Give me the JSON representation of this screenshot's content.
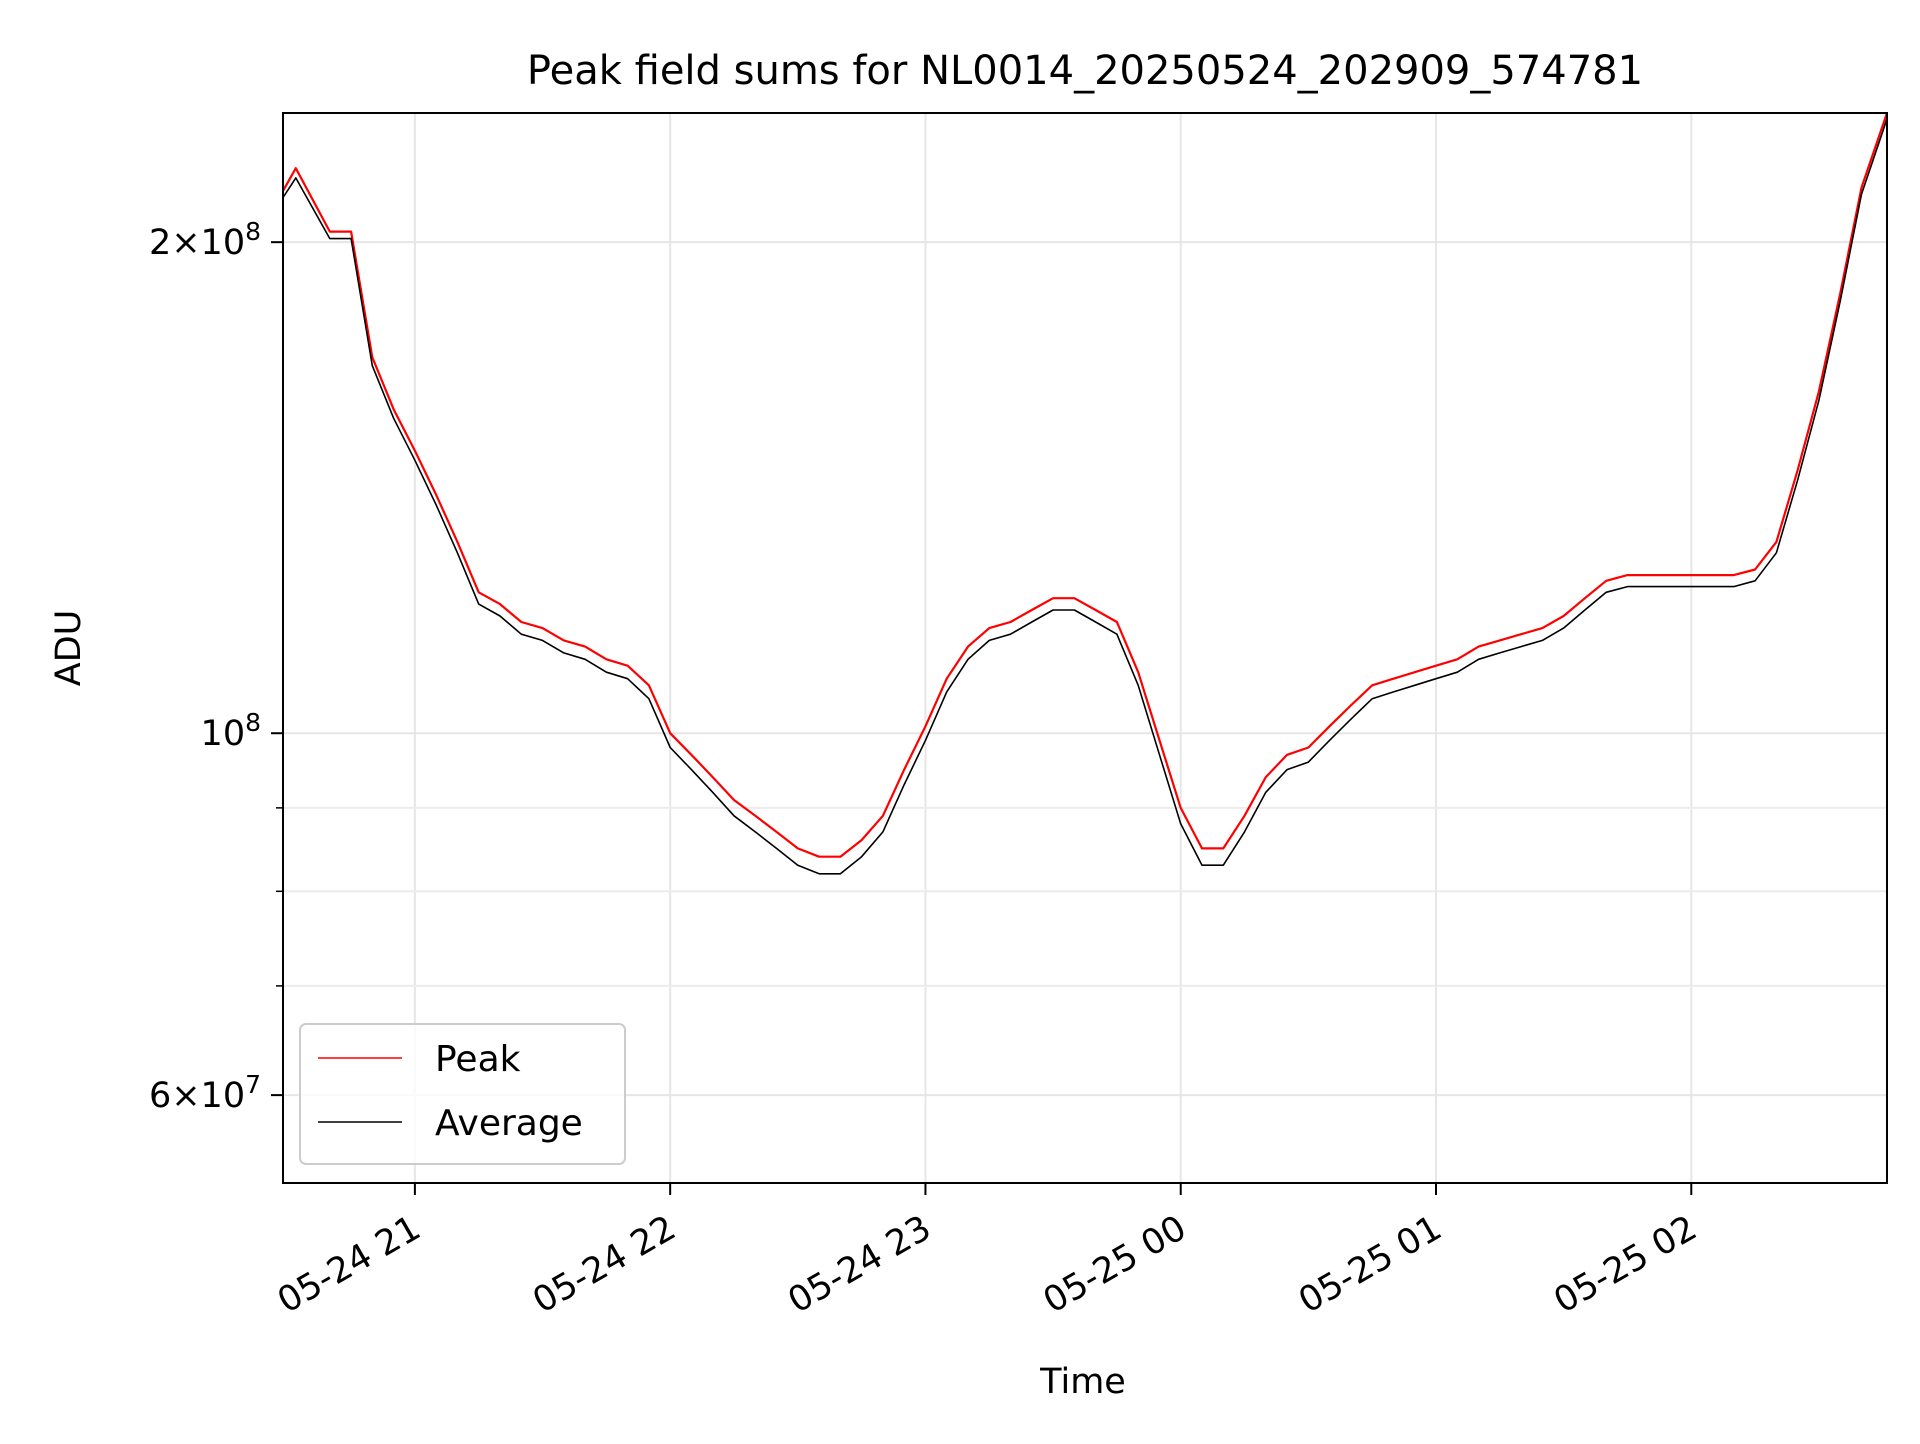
{
  "chart_data": {
    "type": "line",
    "title": "Peak field sums for NL0014_20250524_202909_574781",
    "xlabel": "Time",
    "ylabel": "ADU",
    "yscale": "log",
    "ylim": [
      53000000,
      240000000
    ],
    "xlim": [
      "2025-05-24 20:29",
      "2025-05-25 02:46"
    ],
    "grid": true,
    "legend_position": "lower-left",
    "x_ticks": [
      {
        "t": "2025-05-24 21:00",
        "label": "05-24 21"
      },
      {
        "t": "2025-05-24 22:00",
        "label": "05-24 22"
      },
      {
        "t": "2025-05-24 23:00",
        "label": "05-24 23"
      },
      {
        "t": "2025-05-25 00:00",
        "label": "05-25 00"
      },
      {
        "t": "2025-05-25 01:00",
        "label": "05-25 01"
      },
      {
        "t": "2025-05-25 02:00",
        "label": "05-25 02"
      }
    ],
    "y_major_ticks": [
      {
        "value": 60000000,
        "mantissa": "6",
        "exp": "7"
      },
      {
        "value": 100000000,
        "mantissa": "",
        "exp": "8"
      },
      {
        "value": 200000000,
        "mantissa": "2",
        "exp": "8"
      }
    ],
    "y_minor_ticks": [
      70000000,
      80000000,
      90000000
    ],
    "series": [
      {
        "name": "Peak",
        "color": "#ff0000",
        "x": [
          "2025-05-24 20:29",
          "2025-05-24 20:32",
          "2025-05-24 20:40",
          "2025-05-24 20:45",
          "2025-05-24 20:50",
          "2025-05-24 20:55",
          "2025-05-24 21:00",
          "2025-05-24 21:05",
          "2025-05-24 21:10",
          "2025-05-24 21:15",
          "2025-05-24 21:20",
          "2025-05-24 21:25",
          "2025-05-24 21:30",
          "2025-05-24 21:35",
          "2025-05-24 21:40",
          "2025-05-24 21:45",
          "2025-05-24 21:50",
          "2025-05-24 21:55",
          "2025-05-24 22:00",
          "2025-05-24 22:05",
          "2025-05-24 22:10",
          "2025-05-24 22:15",
          "2025-05-24 22:20",
          "2025-05-24 22:25",
          "2025-05-24 22:30",
          "2025-05-24 22:35",
          "2025-05-24 22:40",
          "2025-05-24 22:45",
          "2025-05-24 22:50",
          "2025-05-24 22:55",
          "2025-05-24 23:00",
          "2025-05-24 23:05",
          "2025-05-24 23:10",
          "2025-05-24 23:15",
          "2025-05-24 23:20",
          "2025-05-24 23:25",
          "2025-05-24 23:30",
          "2025-05-24 23:35",
          "2025-05-24 23:40",
          "2025-05-24 23:45",
          "2025-05-24 23:50",
          "2025-05-24 23:55",
          "2025-05-25 00:00",
          "2025-05-25 00:05",
          "2025-05-25 00:10",
          "2025-05-25 00:15",
          "2025-05-25 00:20",
          "2025-05-25 00:25",
          "2025-05-25 00:30",
          "2025-05-25 00:35",
          "2025-05-25 00:40",
          "2025-05-25 00:45",
          "2025-05-25 00:50",
          "2025-05-25 00:55",
          "2025-05-25 01:00",
          "2025-05-25 01:05",
          "2025-05-25 01:10",
          "2025-05-25 01:15",
          "2025-05-25 01:20",
          "2025-05-25 01:25",
          "2025-05-25 01:30",
          "2025-05-25 01:35",
          "2025-05-25 01:40",
          "2025-05-25 01:45",
          "2025-05-25 01:50",
          "2025-05-25 01:55",
          "2025-05-25 02:00",
          "2025-05-25 02:05",
          "2025-05-25 02:10",
          "2025-05-25 02:15",
          "2025-05-25 02:20",
          "2025-05-25 02:25",
          "2025-05-25 02:30",
          "2025-05-25 02:35",
          "2025-05-25 02:40",
          "2025-05-25 02:46"
        ],
        "values": [
          215000000,
          222000000,
          203000000,
          203000000,
          170000000,
          158000000,
          149000000,
          140000000,
          131000000,
          122000000,
          120000000,
          117000000,
          116000000,
          114000000,
          113000000,
          111000000,
          110000000,
          107000000,
          100000000,
          97000000,
          94000000,
          91000000,
          89000000,
          87000000,
          85000000,
          84000000,
          84000000,
          86000000,
          89000000,
          95000000,
          101000000,
          108000000,
          113000000,
          116000000,
          117000000,
          119000000,
          121000000,
          121000000,
          119000000,
          117000000,
          109000000,
          99000000,
          90000000,
          85000000,
          85000000,
          89000000,
          94000000,
          97000000,
          98000000,
          101000000,
          104000000,
          107000000,
          108000000,
          109000000,
          110000000,
          111000000,
          113000000,
          114000000,
          115000000,
          116000000,
          118000000,
          121000000,
          124000000,
          125000000,
          125000000,
          125000000,
          125000000,
          125000000,
          125000000,
          126000000,
          131000000,
          145000000,
          162000000,
          186000000,
          216000000,
          240000000
        ]
      },
      {
        "name": "Average",
        "color": "#000000",
        "x": [
          "2025-05-24 20:29",
          "2025-05-24 20:32",
          "2025-05-24 20:40",
          "2025-05-24 20:45",
          "2025-05-24 20:50",
          "2025-05-24 20:55",
          "2025-05-24 21:00",
          "2025-05-24 21:05",
          "2025-05-24 21:10",
          "2025-05-24 21:15",
          "2025-05-24 21:20",
          "2025-05-24 21:25",
          "2025-05-24 21:30",
          "2025-05-24 21:35",
          "2025-05-24 21:40",
          "2025-05-24 21:45",
          "2025-05-24 21:50",
          "2025-05-24 21:55",
          "2025-05-24 22:00",
          "2025-05-24 22:05",
          "2025-05-24 22:10",
          "2025-05-24 22:15",
          "2025-05-24 22:20",
          "2025-05-24 22:25",
          "2025-05-24 22:30",
          "2025-05-24 22:35",
          "2025-05-24 22:40",
          "2025-05-24 22:45",
          "2025-05-24 22:50",
          "2025-05-24 22:55",
          "2025-05-24 23:00",
          "2025-05-24 23:05",
          "2025-05-24 23:10",
          "2025-05-24 23:15",
          "2025-05-24 23:20",
          "2025-05-24 23:25",
          "2025-05-24 23:30",
          "2025-05-24 23:35",
          "2025-05-24 23:40",
          "2025-05-24 23:45",
          "2025-05-24 23:50",
          "2025-05-24 23:55",
          "2025-05-25 00:00",
          "2025-05-25 00:05",
          "2025-05-25 00:10",
          "2025-05-25 00:15",
          "2025-05-25 00:20",
          "2025-05-25 00:25",
          "2025-05-25 00:30",
          "2025-05-25 00:35",
          "2025-05-25 00:40",
          "2025-05-25 00:45",
          "2025-05-25 00:50",
          "2025-05-25 00:55",
          "2025-05-25 01:00",
          "2025-05-25 01:05",
          "2025-05-25 01:10",
          "2025-05-25 01:15",
          "2025-05-25 01:20",
          "2025-05-25 01:25",
          "2025-05-25 01:30",
          "2025-05-25 01:35",
          "2025-05-25 01:40",
          "2025-05-25 01:45",
          "2025-05-25 01:50",
          "2025-05-25 01:55",
          "2025-05-25 02:00",
          "2025-05-25 02:05",
          "2025-05-25 02:10",
          "2025-05-25 02:15",
          "2025-05-25 02:20",
          "2025-05-25 02:25",
          "2025-05-25 02:30",
          "2025-05-25 02:35",
          "2025-05-25 02:40",
          "2025-05-25 02:46"
        ],
        "values": [
          213000000,
          219000000,
          201000000,
          201000000,
          168000000,
          156000000,
          147000000,
          138000000,
          129000000,
          120000000,
          118000000,
          115000000,
          114000000,
          112000000,
          111000000,
          109000000,
          108000000,
          105000000,
          98000000,
          95000000,
          92000000,
          89000000,
          87000000,
          85000000,
          83000000,
          82000000,
          82000000,
          84000000,
          87000000,
          93000000,
          99000000,
          106000000,
          111000000,
          114000000,
          115000000,
          117000000,
          119000000,
          119000000,
          117000000,
          115000000,
          107000000,
          97000000,
          88000000,
          83000000,
          83000000,
          87000000,
          92000000,
          95000000,
          96000000,
          99000000,
          102000000,
          105000000,
          106000000,
          107000000,
          108000000,
          109000000,
          111000000,
          112000000,
          113000000,
          114000000,
          116000000,
          119000000,
          122000000,
          123000000,
          123000000,
          123000000,
          123000000,
          123000000,
          123000000,
          124000000,
          129000000,
          143000000,
          160000000,
          184000000,
          214000000,
          238000000
        ]
      }
    ]
  }
}
